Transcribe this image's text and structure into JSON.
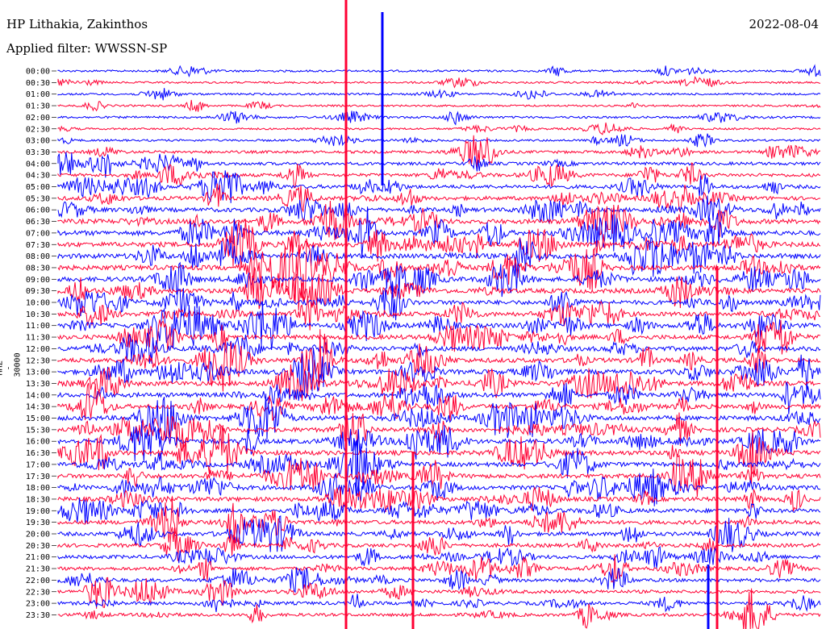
{
  "header": {
    "station": "HP Lithakia, Zakinthos",
    "date": "2022-08-04",
    "filter": "Applied filter: WWSSN-SP"
  },
  "chart_data": {
    "type": "line",
    "title": "HP Lithakia, Zakinthos",
    "subtitle": "Applied filter: WWSSN-SP",
    "date": "2022-08-04",
    "ylabel": "HHZ - 30000",
    "xlabel": "",
    "grid": false,
    "series_colors": [
      "#0000ff",
      "#ff0033"
    ],
    "rows": [
      "00:00",
      "00:30",
      "01:00",
      "01:30",
      "02:00",
      "02:30",
      "03:00",
      "03:30",
      "04:00",
      "04:30",
      "05:00",
      "05:30",
      "06:00",
      "06:30",
      "07:00",
      "07:30",
      "08:00",
      "08:30",
      "09:00",
      "09:30",
      "10:00",
      "10:30",
      "11:00",
      "11:30",
      "12:00",
      "12:30",
      "13:00",
      "13:30",
      "14:00",
      "14:30",
      "15:00",
      "15:30",
      "16:00",
      "16:30",
      "17:00",
      "17:30",
      "18:00",
      "18:30",
      "19:00",
      "19:30",
      "20:00",
      "20:30",
      "21:00",
      "21:30",
      "22:00",
      "22:30",
      "23:00",
      "23:30"
    ],
    "row_colors": [
      "blue",
      "red"
    ],
    "activity": [
      0.15,
      0.12,
      0.15,
      0.12,
      0.2,
      0.12,
      0.18,
      0.35,
      0.45,
      0.5,
      0.6,
      0.65,
      0.75,
      0.85,
      0.9,
      0.9,
      0.95,
      0.9,
      0.85,
      0.85,
      0.8,
      0.8,
      0.8,
      0.8,
      0.85,
      0.85,
      0.85,
      0.85,
      0.8,
      0.8,
      0.85,
      0.85,
      0.85,
      0.85,
      0.8,
      0.8,
      0.75,
      0.75,
      0.7,
      0.7,
      0.65,
      0.6,
      0.6,
      0.55,
      0.55,
      0.5,
      0.5,
      0.45
    ]
  }
}
